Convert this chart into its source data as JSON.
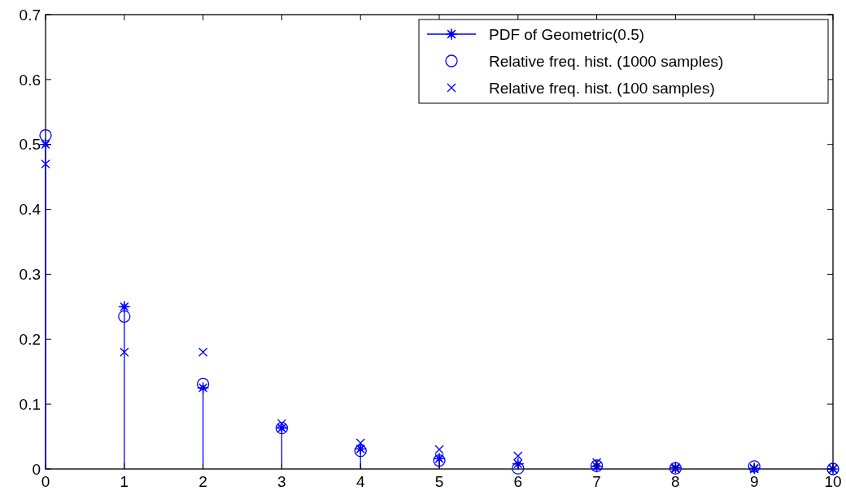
{
  "chart_data": {
    "type": "scatter",
    "x": [
      0,
      1,
      2,
      3,
      4,
      5,
      6,
      7,
      8,
      9,
      10
    ],
    "xlim": [
      0,
      10
    ],
    "xticks": [
      0,
      1,
      2,
      3,
      4,
      5,
      6,
      7,
      8,
      9,
      10
    ],
    "ylim": [
      0,
      0.7
    ],
    "yticks": [
      0,
      0.1,
      0.2,
      0.3,
      0.4,
      0.5,
      0.6,
      0.7
    ],
    "grid": false,
    "legend": "top right",
    "series": [
      {
        "name": "PDF of Geometric(0.5)",
        "type": "lollipop",
        "marker": "star",
        "color": "#0000ff",
        "values": [
          0.5,
          0.25,
          0.125,
          0.063,
          0.031,
          0.016,
          0.008,
          0.004,
          0.002,
          0.001,
          0.0
        ]
      },
      {
        "name": "Relative freq. hist. (1000 samples)",
        "marker": "circle",
        "color": "#0000ff",
        "values": [
          0.514,
          0.235,
          0.131,
          0.063,
          0.028,
          0.013,
          0.001,
          0.005,
          0.001,
          0.004,
          0.0
        ]
      },
      {
        "name": "Relative freq. hist. (100 samples)",
        "marker": "cross",
        "color": "#0000ff",
        "values": [
          0.47,
          0.18,
          0.18,
          0.07,
          0.04,
          0.03,
          0.02,
          0.01,
          0,
          0,
          0
        ]
      }
    ]
  }
}
